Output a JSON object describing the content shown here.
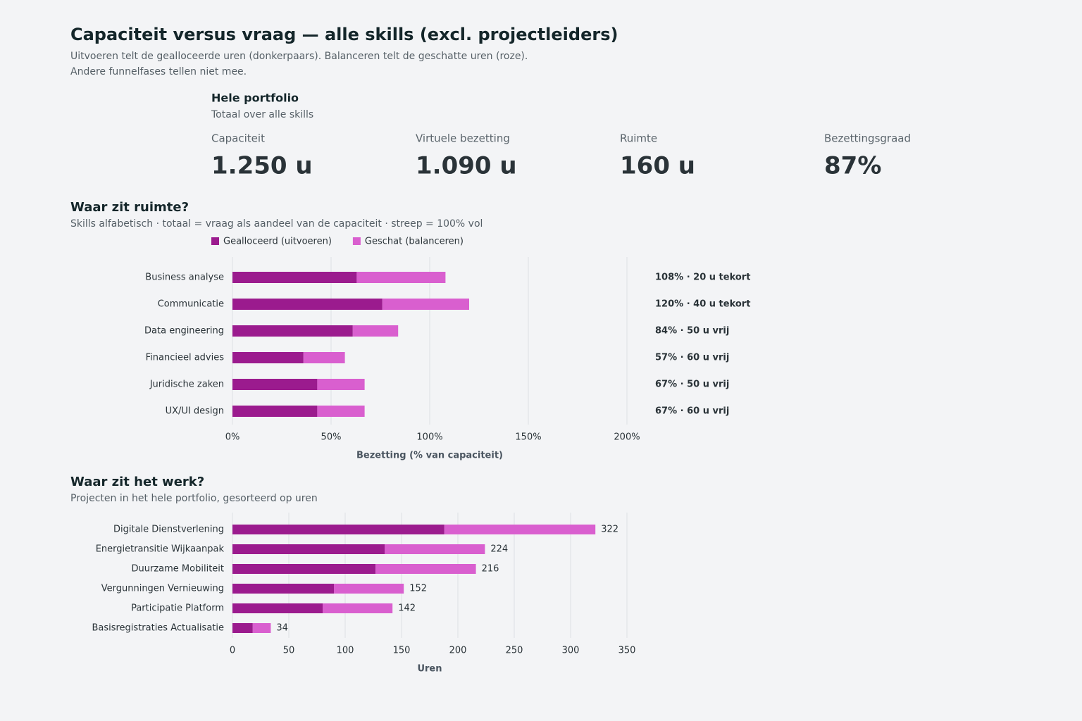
{
  "header": {
    "title": "Capaciteit versus vraag — alle skills (excl. projectleiders)",
    "subtitle": [
      "Uitvoeren telt de gealloceerde uren (donkerpaars). Balanceren telt de geschatte uren (roze).",
      "Andere funnelfases tellen niet mee."
    ]
  },
  "summary": {
    "title": "Hele portfolio",
    "subtitle": "Totaal over alle skills",
    "kpis": [
      {
        "label": "Capaciteit",
        "value": "1.250 u",
        "color": "#14262a"
      },
      {
        "label": "Virtuele bezetting",
        "value": "1.090 u",
        "color": "#a0199a"
      },
      {
        "label": "Ruimte",
        "value": "160 u",
        "color": "#a0199a"
      },
      {
        "label": "Bezettingsgraad",
        "value": "87%",
        "color": "#14262a"
      }
    ]
  },
  "chart_data": [
    {
      "type": "bar",
      "orientation": "horizontal",
      "stacked": true,
      "title": "Waar zit ruimte?",
      "subtitle": "Skills alfabetisch · totaal = vraag als aandeel van de capaciteit · streep = 100% vol",
      "categories": [
        "Business analyse",
        "Communicatie",
        "Data engineering",
        "Financieel advies",
        "Juridische zaken",
        "UX/UI design"
      ],
      "series": [
        {
          "name": "Gealloceerd (uitvoeren)",
          "color": "#9b1b8e",
          "values": [
            63,
            76,
            61,
            36,
            43,
            43
          ]
        },
        {
          "name": "Geschat (balanceren)",
          "color": "#d95fcf",
          "values": [
            45,
            44,
            23,
            21,
            24,
            24
          ]
        }
      ],
      "annotations": [
        "108% · 20 u tekort",
        "120% · 40 u tekort",
        "84% · 50 u vrij",
        "57% · 60 u vrij",
        "67% · 50 u vrij",
        "67% · 60 u vrij"
      ],
      "annotation_colors": [
        "#e0302e",
        "#e0302e",
        "#4a5560",
        "#4a5560",
        "#4a5560",
        "#4a5560"
      ],
      "xlim": [
        0,
        200
      ],
      "xticks": [
        {
          "value": 0,
          "label": "0%"
        },
        {
          "value": 50,
          "label": "50%"
        },
        {
          "value": 100,
          "label": "100%"
        },
        {
          "value": 150,
          "label": "150%"
        },
        {
          "value": 200,
          "label": "200%"
        }
      ],
      "xlabel": "Bezetting (% van capaciteit)",
      "grid": true,
      "legend": "top-left"
    },
    {
      "type": "bar",
      "orientation": "horizontal",
      "stacked": true,
      "title": "Waar zit het werk?",
      "subtitle": "Projecten in het hele portfolio, gesorteerd op uren",
      "categories": [
        "Digitale Dienstverlening",
        "Energietransitie Wijkaanpak",
        "Duurzame Mobiliteit",
        "Vergunningen Vernieuwing",
        "Participatie Platform",
        "Basisregistraties Actualisatie"
      ],
      "series": [
        {
          "name": "Gealloceerd",
          "color": "#9b1b8e",
          "values": [
            188,
            135,
            127,
            90,
            80,
            18
          ]
        },
        {
          "name": "Geschat",
          "color": "#d95fcf",
          "values": [
            134,
            89,
            89,
            62,
            62,
            16
          ]
        }
      ],
      "total_labels": [
        322,
        224,
        216,
        152,
        142,
        34
      ],
      "xlim": [
        0,
        350
      ],
      "xticks": [
        0,
        50,
        100,
        150,
        200,
        250,
        300,
        350
      ],
      "xlabel": "Uren",
      "grid": true
    }
  ]
}
